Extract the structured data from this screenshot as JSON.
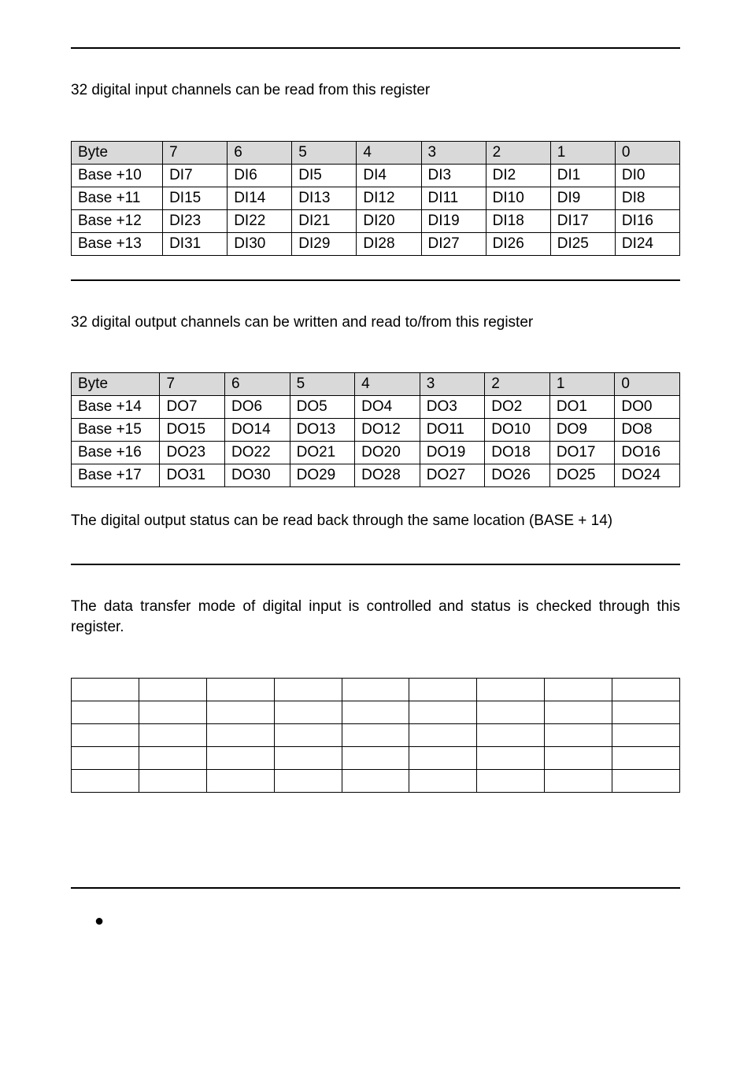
{
  "section_di": {
    "desc": "32 digital input channels can be read from this register",
    "table": {
      "header_bg": "#d9d9d9",
      "columns": [
        "Byte",
        "7",
        "6",
        "5",
        "4",
        "3",
        "2",
        "1",
        "0"
      ],
      "rows": [
        [
          "Base +10",
          "DI7",
          "DI6",
          "DI5",
          "DI4",
          "DI3",
          "DI2",
          "DI1",
          "DI0"
        ],
        [
          "Base +11",
          "DI15",
          "DI14",
          "DI13",
          "DI12",
          "DI11",
          "DI10",
          "DI9",
          "DI8"
        ],
        [
          "Base +12",
          "DI23",
          "DI22",
          "DI21",
          "DI20",
          "DI19",
          "DI18",
          "DI17",
          "DI16"
        ],
        [
          "Base +13",
          "DI31",
          "DI30",
          "DI29",
          "DI28",
          "DI27",
          "DI26",
          "DI25",
          "DI24"
        ]
      ]
    }
  },
  "section_do": {
    "desc": "32 digital output channels can be written and read to/from this register",
    "table": {
      "header_bg": "#d9d9d9",
      "columns": [
        "Byte",
        "7",
        "6",
        "5",
        "4",
        "3",
        "2",
        "1",
        "0"
      ],
      "rows": [
        [
          "Base +14",
          "DO7",
          "DO6",
          "DO5",
          "DO4",
          "DO3",
          "DO2",
          "DO1",
          "DO0"
        ],
        [
          "Base +15",
          "DO15",
          "DO14",
          "DO13",
          "DO12",
          "DO11",
          "DO10",
          "DO9",
          "DO8"
        ],
        [
          "Base +16",
          "DO23",
          "DO22",
          "DO21",
          "DO20",
          "DO19",
          "DO18",
          "DO17",
          "DO16"
        ],
        [
          "Base +17",
          "DO31",
          "DO30",
          "DO29",
          "DO28",
          "DO27",
          "DO26",
          "DO25",
          "DO24"
        ]
      ]
    },
    "note": "The digital output status can be read back through the same location (BASE + 14)"
  },
  "section_mode": {
    "desc": "The data transfer mode of digital input is controlled and status is checked through this register.",
    "empty_table": {
      "cols": 9,
      "rows": 5
    }
  },
  "bullet": "●"
}
